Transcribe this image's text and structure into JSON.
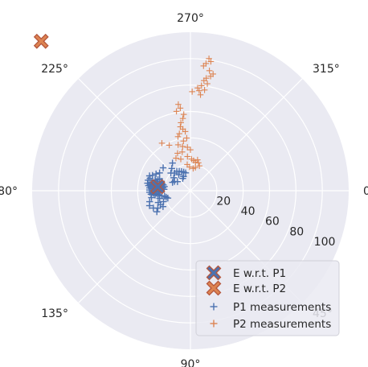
{
  "chart_data": {
    "type": "scatter",
    "projection": "polar",
    "theta_direction": "clockwise",
    "theta_zero": "right",
    "r_max": 120,
    "angle_ticks": [
      "0°",
      "45°",
      "90°",
      "135°",
      "180°",
      "225°",
      "270°",
      "315°"
    ],
    "angle_tick_values": [
      0,
      45,
      90,
      135,
      180,
      225,
      270,
      315
    ],
    "radial_ticks": [
      "20",
      "40",
      "60",
      "80",
      "100"
    ],
    "radial_tick_values": [
      20,
      40,
      60,
      80,
      100
    ],
    "grid": true,
    "legend_placement": "bottom-right",
    "colors": {
      "p1": "#4c72b0",
      "p2": "#dd8452",
      "background": "#eaeaf2",
      "grid": "#ffffff"
    },
    "series": [
      {
        "name": "E w.r.t. P1",
        "marker": "X-filled",
        "points": [
          [
            187,
            25
          ]
        ]
      },
      {
        "name": "E w.r.t. P2",
        "marker": "X-filled",
        "points": [
          [
            225,
            160
          ]
        ]
      },
      {
        "name": "P1 measurements",
        "marker": "plus",
        "points": [
          [
            183,
            22
          ],
          [
            185,
            23
          ],
          [
            187,
            24
          ],
          [
            189,
            25
          ],
          [
            191,
            24
          ],
          [
            184,
            26
          ],
          [
            186,
            27
          ],
          [
            188,
            28
          ],
          [
            190,
            27
          ],
          [
            192,
            26
          ],
          [
            182,
            24
          ],
          [
            180,
            23
          ],
          [
            178,
            24
          ],
          [
            176,
            26
          ],
          [
            174,
            25
          ],
          [
            172,
            24
          ],
          [
            170,
            22
          ],
          [
            168,
            20
          ],
          [
            165,
            19
          ],
          [
            162,
            18
          ],
          [
            195,
            27
          ],
          [
            197,
            28
          ],
          [
            199,
            26
          ],
          [
            201,
            25
          ],
          [
            198,
            23
          ],
          [
            194,
            22
          ],
          [
            192,
            21
          ],
          [
            189,
            20
          ],
          [
            186,
            21
          ],
          [
            183,
            20
          ],
          [
            181,
            28
          ],
          [
            183,
            29
          ],
          [
            186,
            30
          ],
          [
            189,
            31
          ],
          [
            192,
            30
          ],
          [
            188,
            29
          ],
          [
            184,
            28
          ],
          [
            179,
            27
          ],
          [
            176,
            28
          ],
          [
            173,
            27
          ],
          [
            158,
            22
          ],
          [
            155,
            25
          ],
          [
            152,
            28
          ],
          [
            205,
            15
          ],
          [
            210,
            14
          ],
          [
            215,
            12
          ],
          [
            218,
            16
          ],
          [
            222,
            20
          ],
          [
            228,
            18
          ],
          [
            234,
            15
          ],
          [
            235,
            18
          ],
          [
            240,
            17
          ],
          [
            245,
            16
          ],
          [
            250,
            15
          ],
          [
            255,
            14
          ],
          [
            244,
            12
          ],
          [
            238,
            11
          ],
          [
            166,
            24
          ],
          [
            160,
            26
          ],
          [
            150,
            24
          ],
          [
            210,
            27
          ],
          [
            206,
            29
          ],
          [
            202,
            31
          ],
          [
            200,
            33
          ],
          [
            197,
            32
          ],
          [
            194,
            33
          ],
          [
            190,
            33
          ],
          [
            187,
            32
          ],
          [
            184,
            31
          ],
          [
            170,
            30
          ],
          [
            148,
            30
          ],
          [
            165,
            32
          ],
          [
            160,
            33
          ],
          [
            155,
            31
          ],
          [
            175,
            30
          ],
          [
            178,
            31
          ],
          [
            181,
            31
          ],
          [
            230,
            22
          ],
          [
            237,
            25
          ],
          [
            220,
            27
          ]
        ]
      },
      {
        "name": "P2 measurements",
        "marker": "plus",
        "points": [
          [
            278,
            101
          ],
          [
            279,
            99
          ],
          [
            277,
            97
          ],
          [
            276,
            95
          ],
          [
            279,
            92
          ],
          [
            281,
            90
          ],
          [
            280,
            88
          ],
          [
            278,
            86
          ],
          [
            277,
            84
          ],
          [
            279,
            82
          ],
          [
            276,
            80
          ],
          [
            274,
            78
          ],
          [
            275,
            76
          ],
          [
            278,
            77
          ],
          [
            276,
            73
          ],
          [
            271,
            75
          ],
          [
            262,
            66
          ],
          [
            263,
            63
          ],
          [
            260,
            61
          ],
          [
            265,
            58
          ],
          [
            264,
            55
          ],
          [
            262,
            52
          ],
          [
            261,
            49
          ],
          [
            263,
            47
          ],
          [
            265,
            45
          ],
          [
            259,
            44
          ],
          [
            257,
            42
          ],
          [
            266,
            40
          ],
          [
            262,
            38
          ],
          [
            255,
            36
          ],
          [
            260,
            34
          ],
          [
            266,
            33
          ],
          [
            270,
            31
          ],
          [
            258,
            30
          ],
          [
            245,
            38
          ],
          [
            239,
            42
          ],
          [
            251,
            30
          ],
          [
            246,
            27
          ],
          [
            253,
            25
          ],
          [
            265,
            26
          ],
          [
            272,
            24
          ],
          [
            276,
            23
          ],
          [
            280,
            22
          ],
          [
            283,
            24
          ],
          [
            286,
            22
          ],
          [
            290,
            20
          ],
          [
            282,
            18
          ],
          [
            277,
            17
          ],
          [
            268,
            18
          ],
          [
            263,
            20
          ]
        ]
      }
    ]
  }
}
